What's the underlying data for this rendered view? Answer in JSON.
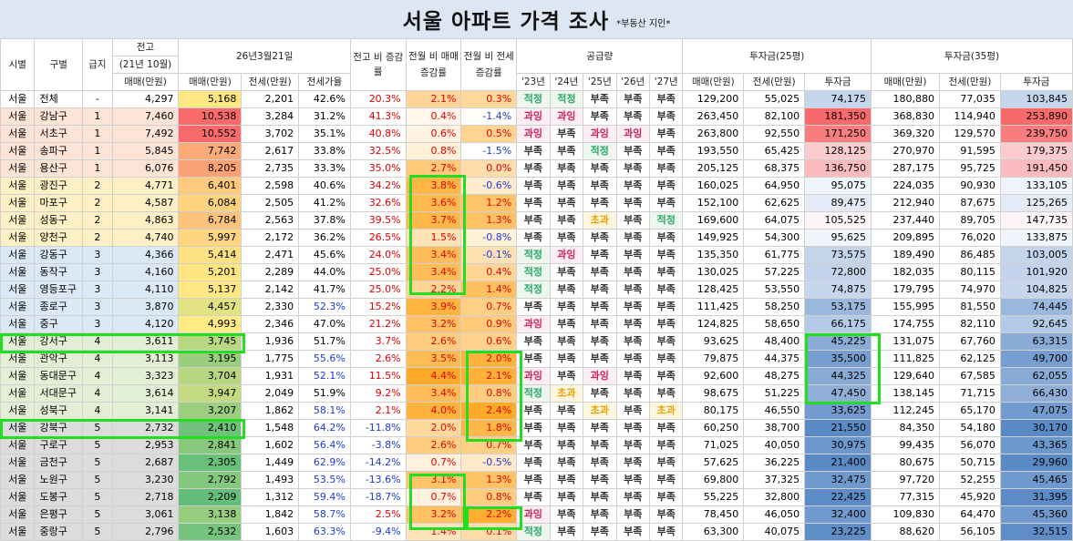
{
  "title": "서울 아파트 가격 조사",
  "subtitle": "*부동산 지인*",
  "headers": {
    "si": "시별",
    "gu": "구별",
    "grade": "급지",
    "prev_group": "전고",
    "prev_sub": "(21년 10월)",
    "date_group": "26년3월21일",
    "ratio_change": "전고 비 증감률",
    "mom_sale": "전월 비 매매 증감률",
    "mom_jeonse": "전월 비 전세 증감률",
    "supply": "공급량",
    "inv25": "투자금(25평)",
    "inv35": "투자금(35평)",
    "sale": "매매(만원)",
    "jeonse": "전세(만원)",
    "jeonse_ratio": "전세가율",
    "invest": "투자금",
    "years": [
      "'23년",
      "'24년",
      "'25년",
      "'26년",
      "'27년"
    ]
  },
  "rows": [
    {
      "si": "서울",
      "gu": "전체",
      "grade": "-",
      "prev": "4,297",
      "sale": "5,168",
      "jeonse": "2,201",
      "ratio": "42.6%",
      "chg": "20.3%",
      "mom_s": "2.1%",
      "mom_j": "0.3%",
      "supply": [
        "적정",
        "적정",
        "부족",
        "부족",
        "부족"
      ],
      "s25": "129,200",
      "j25": "55,025",
      "i25": "74,175",
      "s35": "180,880",
      "j35": "77,035",
      "i35": "103,845"
    },
    {
      "si": "서울",
      "gu": "강남구",
      "grade": "1",
      "prev": "7,460",
      "sale": "10,538",
      "jeonse": "3,284",
      "ratio": "31.2%",
      "chg": "41.3%",
      "mom_s": "0.4%",
      "mom_j": "-1.4%",
      "supply": [
        "과잉",
        "과잉",
        "부족",
        "부족",
        "부족"
      ],
      "s25": "263,450",
      "j25": "82,100",
      "i25": "181,350",
      "s35": "368,830",
      "j35": "114,940",
      "i35": "253,890"
    },
    {
      "si": "서울",
      "gu": "서초구",
      "grade": "1",
      "prev": "7,492",
      "sale": "10,552",
      "jeonse": "3,702",
      "ratio": "35.1%",
      "chg": "40.8%",
      "mom_s": "0.6%",
      "mom_j": "0.5%",
      "supply": [
        "과잉",
        "부족",
        "과잉",
        "과잉",
        "부족"
      ],
      "s25": "263,800",
      "j25": "92,550",
      "i25": "171,250",
      "s35": "369,320",
      "j35": "129,570",
      "i35": "239,750"
    },
    {
      "si": "서울",
      "gu": "송파구",
      "grade": "1",
      "prev": "5,845",
      "sale": "7,742",
      "jeonse": "2,617",
      "ratio": "33.8%",
      "chg": "32.5%",
      "mom_s": "0.8%",
      "mom_j": "-1.5%",
      "supply": [
        "부족",
        "부족",
        "적정",
        "부족",
        "부족"
      ],
      "s25": "193,550",
      "j25": "65,425",
      "i25": "128,125",
      "s35": "270,970",
      "j35": "91,595",
      "i35": "179,375"
    },
    {
      "si": "서울",
      "gu": "용산구",
      "grade": "1",
      "prev": "6,076",
      "sale": "8,205",
      "jeonse": "2,735",
      "ratio": "33.3%",
      "chg": "35.0%",
      "mom_s": "2.7%",
      "mom_j": "0.0%",
      "supply": [
        "부족",
        "부족",
        "부족",
        "부족",
        "부족"
      ],
      "s25": "205,125",
      "j25": "68,375",
      "i25": "136,750",
      "s35": "287,175",
      "j35": "95,725",
      "i35": "191,450"
    },
    {
      "si": "서울",
      "gu": "광진구",
      "grade": "2",
      "prev": "4,771",
      "sale": "6,401",
      "jeonse": "2,598",
      "ratio": "40.6%",
      "chg": "34.2%",
      "mom_s": "3.8%",
      "mom_j": "-0.6%",
      "supply": [
        "부족",
        "부족",
        "부족",
        "부족",
        "부족"
      ],
      "s25": "160,025",
      "j25": "64,950",
      "i25": "95,075",
      "s35": "224,035",
      "j35": "90,930",
      "i35": "133,105"
    },
    {
      "si": "서울",
      "gu": "마포구",
      "grade": "2",
      "prev": "4,587",
      "sale": "6,084",
      "jeonse": "2,505",
      "ratio": "41.2%",
      "chg": "32.6%",
      "mom_s": "3.6%",
      "mom_j": "1.2%",
      "supply": [
        "부족",
        "부족",
        "부족",
        "부족",
        "부족"
      ],
      "s25": "152,100",
      "j25": "62,625",
      "i25": "89,475",
      "s35": "212,940",
      "j35": "87,675",
      "i35": "125,265"
    },
    {
      "si": "서울",
      "gu": "성동구",
      "grade": "2",
      "prev": "4,863",
      "sale": "6,784",
      "jeonse": "2,563",
      "ratio": "37.8%",
      "chg": "39.5%",
      "mom_s": "3.7%",
      "mom_j": "1.3%",
      "supply": [
        "부족",
        "부족",
        "초과",
        "부족",
        "적정"
      ],
      "s25": "169,600",
      "j25": "64,075",
      "i25": "105,525",
      "s35": "237,440",
      "j35": "89,705",
      "i35": "147,735"
    },
    {
      "si": "서울",
      "gu": "양천구",
      "grade": "2",
      "prev": "4,740",
      "sale": "5,997",
      "jeonse": "2,172",
      "ratio": "36.2%",
      "chg": "26.5%",
      "mom_s": "1.5%",
      "mom_j": "-0.8%",
      "supply": [
        "부족",
        "부족",
        "부족",
        "부족",
        "부족"
      ],
      "s25": "149,925",
      "j25": "54,300",
      "i25": "95,625",
      "s35": "209,895",
      "j35": "76,020",
      "i35": "133,875"
    },
    {
      "si": "서울",
      "gu": "강동구",
      "grade": "3",
      "prev": "4,366",
      "sale": "5,414",
      "jeonse": "2,471",
      "ratio": "45.6%",
      "chg": "24.0%",
      "mom_s": "3.4%",
      "mom_j": "-0.1%",
      "supply": [
        "적정",
        "과잉",
        "부족",
        "부족",
        "부족"
      ],
      "s25": "135,350",
      "j25": "61,775",
      "i25": "73,575",
      "s35": "189,490",
      "j35": "86,485",
      "i35": "103,005"
    },
    {
      "si": "서울",
      "gu": "동작구",
      "grade": "3",
      "prev": "4,160",
      "sale": "5,201",
      "jeonse": "2,289",
      "ratio": "44.0%",
      "chg": "25.0%",
      "mom_s": "3.4%",
      "mom_j": "0.4%",
      "supply": [
        "적정",
        "부족",
        "부족",
        "부족",
        "부족"
      ],
      "s25": "130,025",
      "j25": "57,225",
      "i25": "72,800",
      "s35": "182,035",
      "j35": "80,115",
      "i35": "101,920"
    },
    {
      "si": "서울",
      "gu": "영등포구",
      "grade": "3",
      "prev": "4,110",
      "sale": "5,137",
      "jeonse": "2,142",
      "ratio": "41.7%",
      "chg": "25.0%",
      "mom_s": "2.2%",
      "mom_j": "1.4%",
      "supply": [
        "적정",
        "부족",
        "부족",
        "부족",
        "부족"
      ],
      "s25": "128,425",
      "j25": "53,550",
      "i25": "74,875",
      "s35": "179,795",
      "j35": "74,970",
      "i35": "104,825"
    },
    {
      "si": "서울",
      "gu": "종로구",
      "grade": "3",
      "prev": "3,870",
      "sale": "4,457",
      "jeonse": "2,330",
      "ratio": "52.3%",
      "chg": "15.2%",
      "mom_s": "3.9%",
      "mom_j": "0.7%",
      "supply": [
        "부족",
        "부족",
        "부족",
        "부족",
        "부족"
      ],
      "s25": "111,425",
      "j25": "58,250",
      "i25": "53,175",
      "s35": "155,995",
      "j35": "81,550",
      "i35": "74,445"
    },
    {
      "si": "서울",
      "gu": "중구",
      "grade": "3",
      "prev": "4,120",
      "sale": "4,993",
      "jeonse": "2,346",
      "ratio": "47.0%",
      "chg": "21.2%",
      "mom_s": "3.2%",
      "mom_j": "0.9%",
      "supply": [
        "과잉",
        "부족",
        "부족",
        "부족",
        "부족"
      ],
      "s25": "124,825",
      "j25": "58,650",
      "i25": "66,175",
      "s35": "174,755",
      "j35": "82,110",
      "i35": "92,645"
    },
    {
      "si": "서울",
      "gu": "강서구",
      "grade": "4",
      "prev": "3,611",
      "sale": "3,745",
      "jeonse": "1,936",
      "ratio": "51.7%",
      "chg": "3.7%",
      "mom_s": "2.6%",
      "mom_j": "0.6%",
      "supply": [
        "부족",
        "부족",
        "부족",
        "부족",
        "부족"
      ],
      "s25": "93,625",
      "j25": "48,400",
      "i25": "45,225",
      "s35": "131,075",
      "j35": "67,760",
      "i35": "63,315"
    },
    {
      "si": "서울",
      "gu": "관악구",
      "grade": "4",
      "prev": "3,113",
      "sale": "3,195",
      "jeonse": "1,775",
      "ratio": "55.6%",
      "chg": "2.6%",
      "mom_s": "3.5%",
      "mom_j": "2.0%",
      "supply": [
        "부족",
        "부족",
        "부족",
        "부족",
        "부족"
      ],
      "s25": "79,875",
      "j25": "44,375",
      "i25": "35,500",
      "s35": "111,825",
      "j35": "62,125",
      "i35": "49,700"
    },
    {
      "si": "서울",
      "gu": "동대문구",
      "grade": "4",
      "prev": "3,323",
      "sale": "3,704",
      "jeonse": "1,931",
      "ratio": "52.1%",
      "chg": "11.5%",
      "mom_s": "4.4%",
      "mom_j": "2.1%",
      "supply": [
        "과잉",
        "부족",
        "과잉",
        "부족",
        "부족"
      ],
      "s25": "92,600",
      "j25": "48,275",
      "i25": "44,325",
      "s35": "129,640",
      "j35": "67,585",
      "i35": "62,055"
    },
    {
      "si": "서울",
      "gu": "서대문구",
      "grade": "4",
      "prev": "3,614",
      "sale": "3,947",
      "jeonse": "2,049",
      "ratio": "51.9%",
      "chg": "9.2%",
      "mom_s": "3.4%",
      "mom_j": "0.8%",
      "supply": [
        "적정",
        "초과",
        "부족",
        "부족",
        "부족"
      ],
      "s25": "98,675",
      "j25": "51,225",
      "i25": "47,450",
      "s35": "138,145",
      "j35": "71,715",
      "i35": "66,430"
    },
    {
      "si": "서울",
      "gu": "성북구",
      "grade": "4",
      "prev": "3,141",
      "sale": "3,207",
      "jeonse": "1,862",
      "ratio": "58.1%",
      "chg": "2.1%",
      "mom_s": "4.0%",
      "mom_j": "2.4%",
      "supply": [
        "부족",
        "부족",
        "초과",
        "부족",
        "초과"
      ],
      "s25": "80,175",
      "j25": "46,550",
      "i25": "33,625",
      "s35": "112,245",
      "j35": "65,170",
      "i35": "47,075"
    },
    {
      "si": "서울",
      "gu": "강북구",
      "grade": "5",
      "prev": "2,732",
      "sale": "2,410",
      "jeonse": "1,548",
      "ratio": "64.2%",
      "chg": "-11.8%",
      "mom_s": "2.0%",
      "mom_j": "1.8%",
      "supply": [
        "부족",
        "부족",
        "부족",
        "부족",
        "부족"
      ],
      "s25": "60,250",
      "j25": "38,700",
      "i25": "21,550",
      "s35": "84,350",
      "j35": "54,180",
      "i35": "30,170"
    },
    {
      "si": "서울",
      "gu": "구로구",
      "grade": "5",
      "prev": "2,953",
      "sale": "2,841",
      "jeonse": "1,602",
      "ratio": "56.4%",
      "chg": "-3.8%",
      "mom_s": "2.6%",
      "mom_j": "0.7%",
      "supply": [
        "부족",
        "부족",
        "부족",
        "부족",
        "부족"
      ],
      "s25": "71,025",
      "j25": "40,050",
      "i25": "30,975",
      "s35": "99,435",
      "j35": "56,070",
      "i35": "43,365"
    },
    {
      "si": "서울",
      "gu": "금천구",
      "grade": "5",
      "prev": "2,687",
      "sale": "2,305",
      "jeonse": "1,449",
      "ratio": "62.9%",
      "chg": "-14.2%",
      "mom_s": "0.7%",
      "mom_j": "-0.5%",
      "supply": [
        "부족",
        "부족",
        "부족",
        "부족",
        "부족"
      ],
      "s25": "57,625",
      "j25": "36,225",
      "i25": "21,400",
      "s35": "80,675",
      "j35": "50,715",
      "i35": "29,960"
    },
    {
      "si": "서울",
      "gu": "노원구",
      "grade": "5",
      "prev": "3,230",
      "sale": "2,792",
      "jeonse": "1,493",
      "ratio": "53.5%",
      "chg": "-13.6%",
      "mom_s": "3.1%",
      "mom_j": "1.3%",
      "supply": [
        "부족",
        "부족",
        "부족",
        "부족",
        "부족"
      ],
      "s25": "69,800",
      "j25": "37,325",
      "i25": "32,475",
      "s35": "97,720",
      "j35": "52,255",
      "i35": "45,465"
    },
    {
      "si": "서울",
      "gu": "도봉구",
      "grade": "5",
      "prev": "2,718",
      "sale": "2,209",
      "jeonse": "1,312",
      "ratio": "59.4%",
      "chg": "-18.7%",
      "mom_s": "0.7%",
      "mom_j": "0.8%",
      "supply": [
        "부족",
        "부족",
        "부족",
        "부족",
        "부족"
      ],
      "s25": "55,225",
      "j25": "32,800",
      "i25": "22,425",
      "s35": "77,315",
      "j35": "45,920",
      "i35": "31,395"
    },
    {
      "si": "서울",
      "gu": "은평구",
      "grade": "5",
      "prev": "3,061",
      "sale": "3,138",
      "jeonse": "1,842",
      "ratio": "58.7%",
      "chg": "2.5%",
      "mom_s": "3.2%",
      "mom_j": "2.2%",
      "supply": [
        "과잉",
        "부족",
        "부족",
        "부족",
        "부족"
      ],
      "s25": "78,450",
      "j25": "46,050",
      "i25": "32,400",
      "s35": "109,830",
      "j35": "64,470",
      "i35": "45,360"
    },
    {
      "si": "서울",
      "gu": "중랑구",
      "grade": "5",
      "prev": "2,796",
      "sale": "2,532",
      "jeonse": "1,603",
      "ratio": "63.3%",
      "chg": "-9.4%",
      "mom_s": "1.4%",
      "mom_j": "0.1%",
      "supply": [
        "적정",
        "부족",
        "부족",
        "부족",
        "부족"
      ],
      "s25": "63,300",
      "j25": "40,075",
      "i25": "23,225",
      "s35": "88,620",
      "j35": "56,105",
      "i35": "32,515"
    }
  ]
}
